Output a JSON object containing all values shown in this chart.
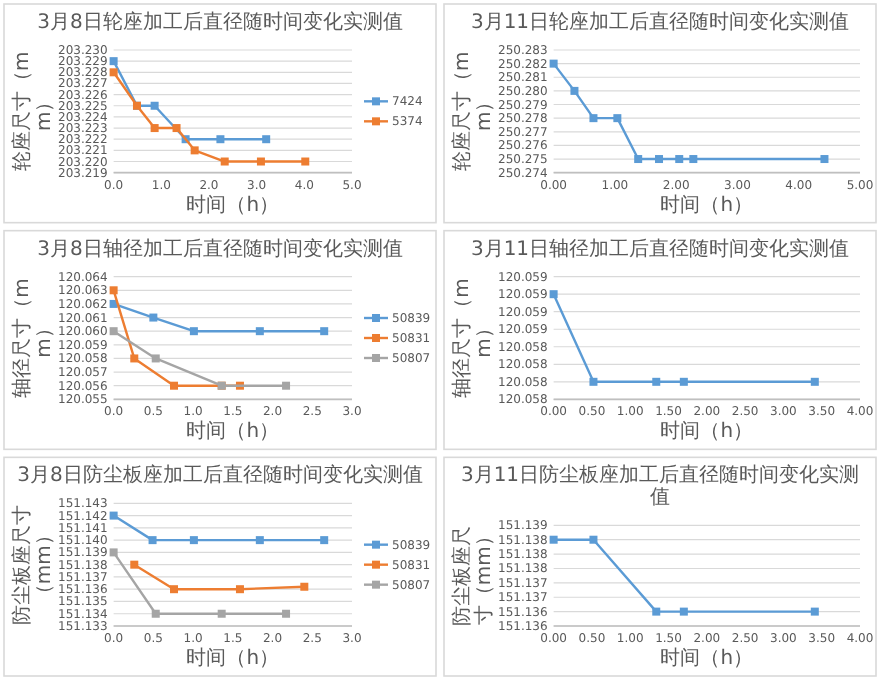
{
  "chart_data": [
    {
      "type": "line",
      "title": "3月8日轮座加工后直径随时间变化实测值",
      "xlabel": "时间（h）",
      "ylabel": "轮座尺寸（mm）",
      "grid": "y",
      "legend": "right",
      "marker": "square",
      "line_style": "solid",
      "xlim": [
        0,
        5
      ],
      "xticks": [
        {
          "value": 0,
          "label": "0.0"
        },
        {
          "value": 1,
          "label": "1.0"
        },
        {
          "value": 2,
          "label": "2.0"
        },
        {
          "value": 3,
          "label": "3.0"
        },
        {
          "value": 4,
          "label": "4.0"
        },
        {
          "value": 5,
          "label": "5.0"
        }
      ],
      "ylim": [
        203.219,
        203.23
      ],
      "yticks": [
        {
          "value": 203.219,
          "label": "203.219"
        },
        {
          "value": 203.22,
          "label": "203.220"
        },
        {
          "value": 203.221,
          "label": "203.221"
        },
        {
          "value": 203.222,
          "label": "203.222"
        },
        {
          "value": 203.223,
          "label": "203.223"
        },
        {
          "value": 203.224,
          "label": "203.224"
        },
        {
          "value": 203.225,
          "label": "203.225"
        },
        {
          "value": 203.226,
          "label": "203.226"
        },
        {
          "value": 203.227,
          "label": "203.227"
        },
        {
          "value": 203.228,
          "label": "203.228"
        },
        {
          "value": 203.229,
          "label": "203.229"
        },
        {
          "value": 203.23,
          "label": "203.230"
        }
      ],
      "series": [
        {
          "name": "7424",
          "color": "#5b9bd5",
          "x": [
            0,
            0.49,
            0.86,
            1.51,
            2.24,
            3.2
          ],
          "values": [
            203.229,
            203.225,
            203.225,
            203.222,
            203.222,
            203.222
          ]
        },
        {
          "name": "5374",
          "color": "#ed7d31",
          "x": [
            0,
            0.49,
            0.86,
            1.32,
            1.7,
            2.33,
            3.09,
            4.02
          ],
          "values": [
            203.228,
            203.225,
            203.223,
            203.223,
            203.221,
            203.22,
            203.22,
            203.22
          ]
        }
      ]
    },
    {
      "type": "line",
      "title": "3月11日轮座加工后直径随时间变化实测值",
      "xlabel": "时间（h）",
      "ylabel": "轮座尺寸（mm）",
      "grid": "y",
      "marker": "square",
      "line_style": "solid",
      "xlim": [
        0,
        5
      ],
      "xticks": [
        {
          "value": 0,
          "label": "0.00"
        },
        {
          "value": 1,
          "label": "1.00"
        },
        {
          "value": 2,
          "label": "2.00"
        },
        {
          "value": 3,
          "label": "3.00"
        },
        {
          "value": 4,
          "label": "4.00"
        },
        {
          "value": 5,
          "label": "5.00"
        }
      ],
      "ylim": [
        250.274,
        250.283
      ],
      "yticks": [
        {
          "value": 250.274,
          "label": "250.274"
        },
        {
          "value": 250.275,
          "label": "250.275"
        },
        {
          "value": 250.276,
          "label": "250.276"
        },
        {
          "value": 250.277,
          "label": "250.277"
        },
        {
          "value": 250.278,
          "label": "250.278"
        },
        {
          "value": 250.279,
          "label": "250.279"
        },
        {
          "value": 250.28,
          "label": "250.280"
        },
        {
          "value": 250.281,
          "label": "250.281"
        },
        {
          "value": 250.282,
          "label": "250.282"
        },
        {
          "value": 250.283,
          "label": "250.283"
        }
      ],
      "series": [
        {
          "color": "#5b9bd5",
          "x": [
            0,
            0.34,
            0.65,
            1.04,
            1.38,
            1.72,
            2.05,
            2.28,
            4.42
          ],
          "values": [
            250.282,
            250.28,
            250.278,
            250.278,
            250.275,
            250.275,
            250.275,
            250.275,
            250.275
          ]
        }
      ]
    },
    {
      "type": "line",
      "title": "3月8日轴径加工后直径随时间变化实测值",
      "xlabel": "时间（h）",
      "ylabel": "轴径尺寸（mm）",
      "grid": "y",
      "legend": "right",
      "marker": "square",
      "line_style": "solid",
      "xlim": [
        0,
        3
      ],
      "xticks": [
        {
          "value": 0,
          "label": "0.0"
        },
        {
          "value": 0.5,
          "label": "0.5"
        },
        {
          "value": 1,
          "label": "1.0"
        },
        {
          "value": 1.5,
          "label": "1.5"
        },
        {
          "value": 2,
          "label": "2.0"
        },
        {
          "value": 2.5,
          "label": "2.5"
        },
        {
          "value": 3,
          "label": "3.0"
        }
      ],
      "ylim": [
        120.055,
        120.064
      ],
      "yticks": [
        {
          "value": 120.055,
          "label": "120.055"
        },
        {
          "value": 120.056,
          "label": "120.056"
        },
        {
          "value": 120.057,
          "label": "120.057"
        },
        {
          "value": 120.058,
          "label": "120.058"
        },
        {
          "value": 120.059,
          "label": "120.059"
        },
        {
          "value": 120.06,
          "label": "120.060"
        },
        {
          "value": 120.061,
          "label": "120.061"
        },
        {
          "value": 120.062,
          "label": "120.062"
        },
        {
          "value": 120.063,
          "label": "120.063"
        },
        {
          "value": 120.064,
          "label": "120.064"
        }
      ],
      "series": [
        {
          "name": "50839",
          "color": "#5b9bd5",
          "x": [
            0,
            0.5,
            1.01,
            1.84,
            2.65
          ],
          "values": [
            120.062,
            120.061,
            120.06,
            120.06,
            120.06
          ]
        },
        {
          "name": "50831",
          "color": "#ed7d31",
          "x": [
            0,
            0.26,
            0.76,
            1.36,
            1.59
          ],
          "values": [
            120.063,
            120.058,
            120.056,
            120.056,
            120.056
          ]
        },
        {
          "name": "50807",
          "color": "#a5a5a5",
          "x": [
            0,
            0.53,
            1.36,
            2.17
          ],
          "values": [
            120.06,
            120.058,
            120.056,
            120.056
          ]
        }
      ]
    },
    {
      "type": "line",
      "title": "3月11日轴径加工后直径随时间变化实测值",
      "xlabel": "时间（h）",
      "ylabel": "轴径尺寸（mm）",
      "grid": "y",
      "marker": "square",
      "line_style": "solid",
      "xlim": [
        0,
        4
      ],
      "xticks": [
        {
          "value": 0,
          "label": "0.00"
        },
        {
          "value": 0.5,
          "label": "0.50"
        },
        {
          "value": 1,
          "label": "1.00"
        },
        {
          "value": 1.5,
          "label": "1.50"
        },
        {
          "value": 2,
          "label": "2.00"
        },
        {
          "value": 2.5,
          "label": "2.50"
        },
        {
          "value": 3,
          "label": "3.00"
        },
        {
          "value": 3.5,
          "label": "3.50"
        },
        {
          "value": 4,
          "label": "4.00"
        }
      ],
      "ylim": [
        120.0581,
        120.0588
      ],
      "yticks": [
        {
          "value": 120.0581,
          "label": "120.058"
        },
        {
          "value": 120.0582,
          "label": "120.058"
        },
        {
          "value": 120.0583,
          "label": "120.058"
        },
        {
          "value": 120.0584,
          "label": "120.058"
        },
        {
          "value": 120.0585,
          "label": "120.059"
        },
        {
          "value": 120.0586,
          "label": "120.059"
        },
        {
          "value": 120.0587,
          "label": "120.059"
        },
        {
          "value": 120.0588,
          "label": "120.059"
        }
      ],
      "series": [
        {
          "color": "#5b9bd5",
          "x": [
            0,
            0.52,
            1.34,
            1.7,
            3.41
          ],
          "values": [
            120.0587,
            120.0582,
            120.0582,
            120.0582,
            120.0582
          ]
        }
      ]
    },
    {
      "type": "line",
      "title": "3月8日防尘板座加工后直径随时间变化实测值",
      "xlabel": "时间（h）",
      "ylabel": "防尘板座尺寸（mm）",
      "grid": "y",
      "legend": "right",
      "marker": "square",
      "line_style": "solid",
      "xlim": [
        0,
        3
      ],
      "xticks": [
        {
          "value": 0,
          "label": "0.0"
        },
        {
          "value": 0.5,
          "label": "0.5"
        },
        {
          "value": 1,
          "label": "1.0"
        },
        {
          "value": 1.5,
          "label": "1.5"
        },
        {
          "value": 2,
          "label": "2.0"
        },
        {
          "value": 2.5,
          "label": "2.5"
        },
        {
          "value": 3,
          "label": "3.0"
        }
      ],
      "ylim": [
        151.133,
        151.143
      ],
      "yticks": [
        {
          "value": 151.133,
          "label": "151.133"
        },
        {
          "value": 151.134,
          "label": "151.134"
        },
        {
          "value": 151.135,
          "label": "151.135"
        },
        {
          "value": 151.136,
          "label": "151.136"
        },
        {
          "value": 151.137,
          "label": "151.137"
        },
        {
          "value": 151.138,
          "label": "151.138"
        },
        {
          "value": 151.139,
          "label": "151.139"
        },
        {
          "value": 151.14,
          "label": "151.140"
        },
        {
          "value": 151.141,
          "label": "151.141"
        },
        {
          "value": 151.142,
          "label": "151.142"
        },
        {
          "value": 151.143,
          "label": "151.143"
        }
      ],
      "series": [
        {
          "name": "50839",
          "color": "#5b9bd5",
          "x": [
            0,
            0.49,
            1.01,
            1.84,
            2.65
          ],
          "values": [
            151.142,
            151.14,
            151.14,
            151.14,
            151.14
          ]
        },
        {
          "name": "50831",
          "color": "#ed7d31",
          "x": [
            0.26,
            0.76,
            1.59,
            2.4
          ],
          "values": [
            151.138,
            151.136,
            151.136,
            151.1362
          ]
        },
        {
          "name": "50807",
          "color": "#a5a5a5",
          "x": [
            0,
            0.53,
            1.36,
            2.17
          ],
          "values": [
            151.139,
            151.134,
            151.134,
            151.134
          ]
        }
      ]
    },
    {
      "type": "line",
      "title": "3月11日防尘板座加工后直径随时间变化实测值",
      "xlabel": "时间（h）",
      "ylabel": "防尘板座尺寸（mm）",
      "grid": "y",
      "marker": "square",
      "line_style": "solid",
      "xlim": [
        0,
        4
      ],
      "xticks": [
        {
          "value": 0,
          "label": "0.00"
        },
        {
          "value": 0.5,
          "label": "0.50"
        },
        {
          "value": 1,
          "label": "1.00"
        },
        {
          "value": 1.5,
          "label": "1.50"
        },
        {
          "value": 2,
          "label": "2.00"
        },
        {
          "value": 2.5,
          "label": "2.50"
        },
        {
          "value": 3,
          "label": "3.00"
        },
        {
          "value": 3.5,
          "label": "3.50"
        },
        {
          "value": 4,
          "label": "4.00"
        }
      ],
      "ylim": [
        151.1355,
        151.139
      ],
      "yticks": [
        {
          "value": 151.1355,
          "label": "151.136"
        },
        {
          "value": 151.136,
          "label": "151.136"
        },
        {
          "value": 151.1365,
          "label": "151.137"
        },
        {
          "value": 151.137,
          "label": "151.137"
        },
        {
          "value": 151.1375,
          "label": "151.138"
        },
        {
          "value": 151.138,
          "label": "151.138"
        },
        {
          "value": 151.1385,
          "label": "151.138"
        },
        {
          "value": 151.139,
          "label": "151.139"
        }
      ],
      "series": [
        {
          "color": "#5b9bd5",
          "x": [
            0,
            0.52,
            1.34,
            1.7,
            3.41
          ],
          "values": [
            151.1385,
            151.1385,
            151.136,
            151.136,
            151.136
          ]
        }
      ]
    }
  ]
}
